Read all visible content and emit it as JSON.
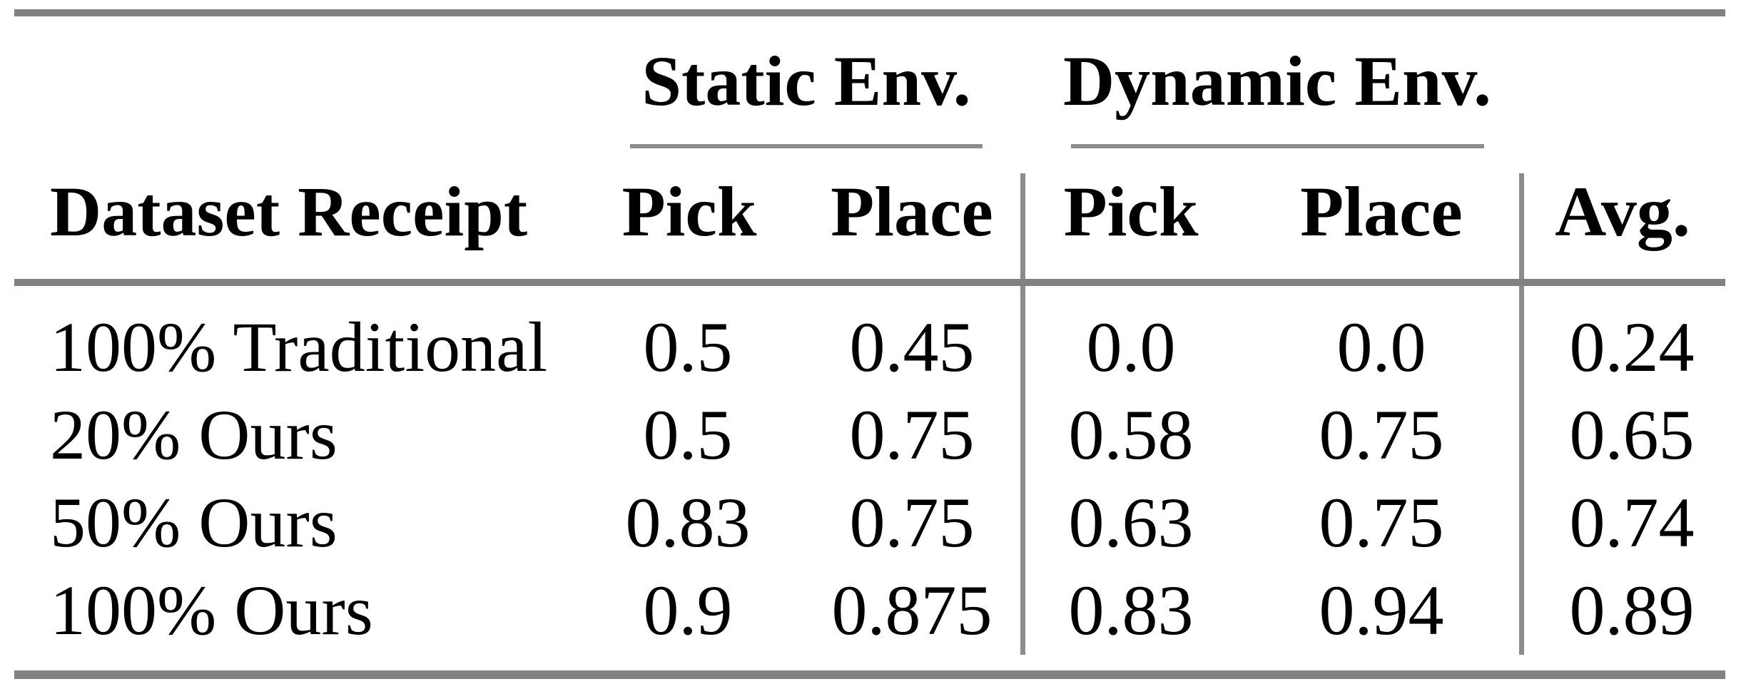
{
  "colors": {
    "rule_thick": "#818181",
    "rule_thin": "#8c8c8c",
    "text": "#000000",
    "bg": "#ffffff"
  },
  "table": {
    "col_groups": [
      {
        "label": "Static Env."
      },
      {
        "label": "Dynamic Env."
      }
    ],
    "columns": {
      "row_header": "Dataset Receipt",
      "static_pick": "Pick",
      "static_place": "Place",
      "dynamic_pick": "Pick",
      "dynamic_place": "Place",
      "avg": "Avg."
    },
    "rows": [
      {
        "label": "100% Traditional",
        "static_pick": "0.5",
        "static_place": "0.45",
        "dynamic_pick": "0.0",
        "dynamic_place": "0.0",
        "avg": "0.24"
      },
      {
        "label": "20% Ours",
        "static_pick": "0.5",
        "static_place": "0.75",
        "dynamic_pick": "0.58",
        "dynamic_place": "0.75",
        "avg": "0.65"
      },
      {
        "label": "50% Ours",
        "static_pick": "0.83",
        "static_place": "0.75",
        "dynamic_pick": "0.63",
        "dynamic_place": "0.75",
        "avg": "0.74"
      },
      {
        "label": "100% Ours",
        "static_pick": "0.9",
        "static_place": "0.875",
        "dynamic_pick": "0.83",
        "dynamic_place": "0.94",
        "avg": "0.89"
      }
    ]
  }
}
